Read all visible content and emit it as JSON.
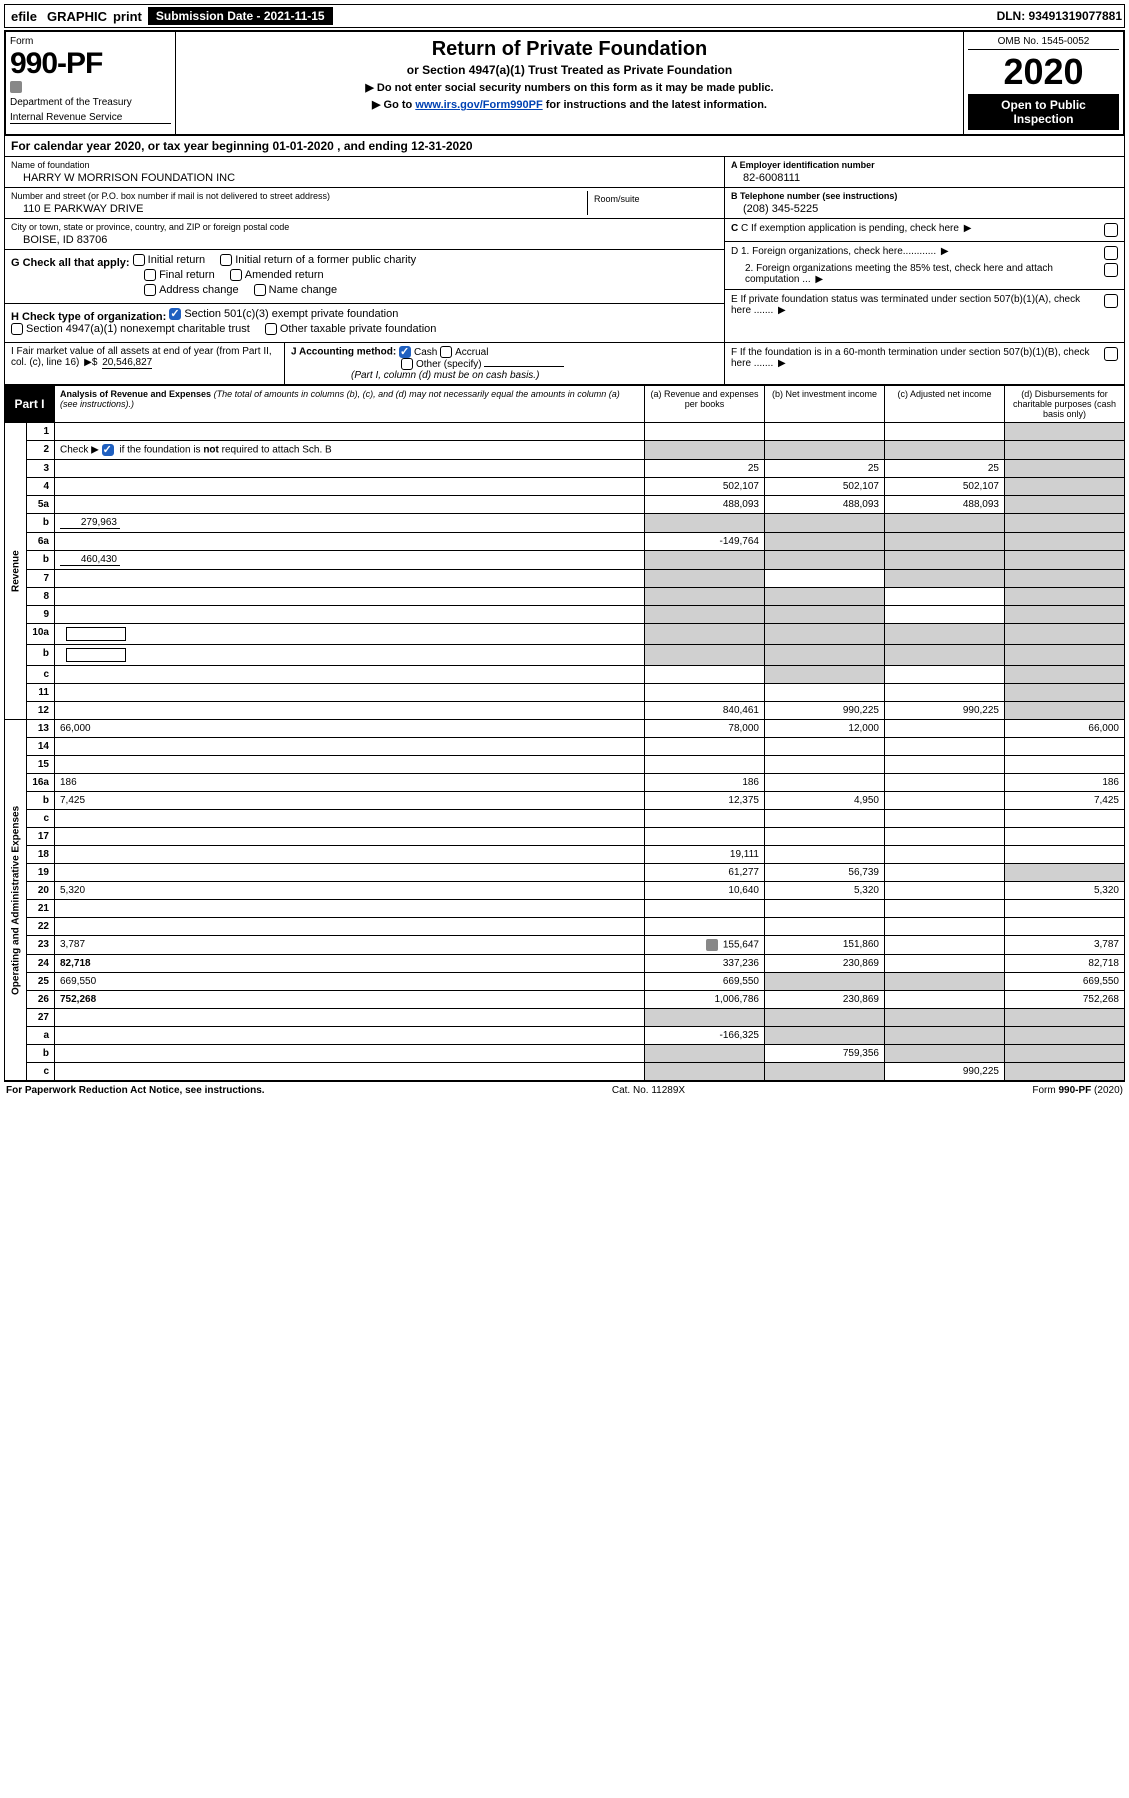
{
  "topbar": {
    "efile": "efile",
    "graphic": "GRAPHIC",
    "print": "print",
    "subdate": "Submission Date - 2021-11-15",
    "dln": "DLN: 93491319077881"
  },
  "header": {
    "form_label": "Form",
    "form_number": "990-PF",
    "dept": "Department of the Treasury",
    "irs": "Internal Revenue Service",
    "title": "Return of Private Foundation",
    "subtitle": "or Section 4947(a)(1) Trust Treated as Private Foundation",
    "instr1": "▶ Do not enter social security numbers on this form as it may be made public.",
    "instr2_pre": "▶ Go to ",
    "instr2_link": "www.irs.gov/Form990PF",
    "instr2_post": " for instructions and the latest information.",
    "omb": "OMB No. 1545-0052",
    "year": "2020",
    "open": "Open to Public Inspection"
  },
  "calendar": "For calendar year 2020, or tax year beginning 01-01-2020          , and ending 12-31-2020",
  "org": {
    "name_lbl": "Name of foundation",
    "name": "HARRY W MORRISON FOUNDATION INC",
    "addr_lbl": "Number and street (or P.O. box number if mail is not delivered to street address)",
    "addr": "110 E PARKWAY DRIVE",
    "room_lbl": "Room/suite",
    "city_lbl": "City or town, state or province, country, and ZIP or foreign postal code",
    "city": "BOISE, ID  83706",
    "a_lbl": "A Employer identification number",
    "a_val": "82-6008111",
    "b_lbl": "B Telephone number (see instructions)",
    "b_val": "(208) 345-5225",
    "c_lbl": "C If exemption application is pending, check here",
    "d1": "D 1. Foreign organizations, check here............",
    "d2": "2. Foreign organizations meeting the 85% test, check here and attach computation ...",
    "e": "E If private foundation status was terminated under section 507(b)(1)(A), check here .......",
    "f": "F If the foundation is in a 60-month termination under section 507(b)(1)(B), check here .......",
    "g_lbl": "G Check all that apply:",
    "g_opts": [
      "Initial return",
      "Initial return of a former public charity",
      "Final return",
      "Amended return",
      "Address change",
      "Name change"
    ],
    "h_lbl": "H Check type of organization:",
    "h_opt1": "Section 501(c)(3) exempt private foundation",
    "h_opt2": "Section 4947(a)(1) nonexempt charitable trust",
    "h_opt3": "Other taxable private foundation",
    "i_lbl": "I Fair market value of all assets at end of year (from Part II, col. (c), line 16)",
    "i_val": "20,546,827",
    "j_lbl": "J Accounting method:",
    "j_cash": "Cash",
    "j_accrual": "Accrual",
    "j_other": "Other (specify)",
    "j_note": "(Part I, column (d) must be on cash basis.)"
  },
  "part1": {
    "label": "Part I",
    "title": "Analysis of Revenue and Expenses",
    "note": "(The total of amounts in columns (b), (c), and (d) may not necessarily equal the amounts in column (a) (see instructions).)",
    "col_a": "(a) Revenue and expenses per books",
    "col_b": "(b) Net investment income",
    "col_c": "(c) Adjusted net income",
    "col_d": "(d) Disbursements for charitable purposes (cash basis only)",
    "side_rev": "Revenue",
    "side_exp": "Operating and Administrative Expenses"
  },
  "rows": [
    {
      "n": "1",
      "d": "",
      "a": "",
      "b": "",
      "c": "",
      "grey": [
        "d"
      ]
    },
    {
      "n": "2",
      "d": "",
      "dotted": true,
      "a": "",
      "b": "",
      "c": "",
      "grey": [
        "a",
        "b",
        "c",
        "d"
      ],
      "check": true
    },
    {
      "n": "3",
      "d": "",
      "a": "25",
      "b": "25",
      "c": "25",
      "grey": [
        "d"
      ]
    },
    {
      "n": "4",
      "d": "",
      "dotted": true,
      "a": "502,107",
      "b": "502,107",
      "c": "502,107",
      "grey": [
        "d"
      ]
    },
    {
      "n": "5a",
      "d": "",
      "dotted": true,
      "a": "488,093",
      "b": "488,093",
      "c": "488,093",
      "grey": [
        "d"
      ]
    },
    {
      "n": "b",
      "d": "",
      "inline": "279,963",
      "a": "",
      "b": "",
      "c": "",
      "grey": [
        "a",
        "b",
        "c",
        "d"
      ]
    },
    {
      "n": "6a",
      "d": "",
      "a": "-149,764",
      "b": "",
      "c": "",
      "grey": [
        "b",
        "c",
        "d"
      ]
    },
    {
      "n": "b",
      "d": "",
      "inline": "460,430",
      "a": "",
      "b": "",
      "c": "",
      "grey": [
        "a",
        "b",
        "c",
        "d"
      ]
    },
    {
      "n": "7",
      "d": "",
      "dotted": true,
      "a": "",
      "b": "",
      "c": "",
      "grey": [
        "a",
        "c",
        "d"
      ]
    },
    {
      "n": "8",
      "d": "",
      "dotted": true,
      "a": "",
      "b": "",
      "c": "",
      "grey": [
        "a",
        "b",
        "d"
      ]
    },
    {
      "n": "9",
      "d": "",
      "dotted": true,
      "a": "",
      "b": "",
      "c": "",
      "grey": [
        "a",
        "b",
        "d"
      ]
    },
    {
      "n": "10a",
      "d": "",
      "box": true,
      "a": "",
      "b": "",
      "c": "",
      "grey": [
        "a",
        "b",
        "c",
        "d"
      ]
    },
    {
      "n": "b",
      "d": "",
      "dotted": true,
      "box": true,
      "a": "",
      "b": "",
      "c": "",
      "grey": [
        "a",
        "b",
        "c",
        "d"
      ]
    },
    {
      "n": "c",
      "d": "",
      "dotted": true,
      "a": "",
      "b": "",
      "c": "",
      "grey": [
        "b",
        "d"
      ]
    },
    {
      "n": "11",
      "d": "",
      "dotted": true,
      "a": "",
      "b": "",
      "c": "",
      "grey": [
        "d"
      ]
    },
    {
      "n": "12",
      "d": "",
      "dotted": true,
      "bold": true,
      "a": "840,461",
      "b": "990,225",
      "c": "990,225",
      "grey": [
        "d"
      ]
    },
    {
      "n": "13",
      "d": "66,000",
      "a": "78,000",
      "b": "12,000",
      "c": ""
    },
    {
      "n": "14",
      "d": "",
      "dotted": true,
      "a": "",
      "b": "",
      "c": ""
    },
    {
      "n": "15",
      "d": "",
      "dotted": true,
      "a": "",
      "b": "",
      "c": ""
    },
    {
      "n": "16a",
      "d": "186",
      "dotted": true,
      "a": "186",
      "b": "",
      "c": ""
    },
    {
      "n": "b",
      "d": "7,425",
      "dotted": true,
      "a": "12,375",
      "b": "4,950",
      "c": ""
    },
    {
      "n": "c",
      "d": "",
      "dotted": true,
      "a": "",
      "b": "",
      "c": ""
    },
    {
      "n": "17",
      "d": "",
      "dotted": true,
      "a": "",
      "b": "",
      "c": ""
    },
    {
      "n": "18",
      "d": "",
      "dotted": true,
      "a": "19,111",
      "b": "",
      "c": ""
    },
    {
      "n": "19",
      "d": "",
      "dotted": true,
      "a": "61,277",
      "b": "56,739",
      "c": "",
      "grey": [
        "d"
      ]
    },
    {
      "n": "20",
      "d": "5,320",
      "dotted": true,
      "a": "10,640",
      "b": "5,320",
      "c": ""
    },
    {
      "n": "21",
      "d": "",
      "dotted": true,
      "a": "",
      "b": "",
      "c": ""
    },
    {
      "n": "22",
      "d": "",
      "dotted": true,
      "a": "",
      "b": "",
      "c": ""
    },
    {
      "n": "23",
      "d": "3,787",
      "dotted": true,
      "icon": true,
      "a": "155,647",
      "b": "151,860",
      "c": ""
    },
    {
      "n": "24",
      "d": "82,718",
      "dotted": true,
      "bold": true,
      "a": "337,236",
      "b": "230,869",
      "c": ""
    },
    {
      "n": "25",
      "d": "669,550",
      "dotted": true,
      "a": "669,550",
      "b": "",
      "c": "",
      "grey": [
        "b",
        "c"
      ]
    },
    {
      "n": "26",
      "d": "752,268",
      "bold": true,
      "a": "1,006,786",
      "b": "230,869",
      "c": ""
    },
    {
      "n": "27",
      "d": "",
      "a": "",
      "b": "",
      "c": "",
      "grey": [
        "a",
        "b",
        "c",
        "d"
      ]
    },
    {
      "n": "a",
      "d": "",
      "bold": true,
      "a": "-166,325",
      "b": "",
      "c": "",
      "grey": [
        "b",
        "c",
        "d"
      ]
    },
    {
      "n": "b",
      "d": "",
      "bold": true,
      "a": "",
      "b": "759,356",
      "c": "",
      "grey": [
        "a",
        "c",
        "d"
      ]
    },
    {
      "n": "c",
      "d": "",
      "dotted": true,
      "bold": true,
      "a": "",
      "b": "",
      "c": "990,225",
      "grey": [
        "a",
        "b",
        "d"
      ]
    }
  ],
  "footer": {
    "left": "For Paperwork Reduction Act Notice, see instructions.",
    "mid": "Cat. No. 11289X",
    "right": "Form 990-PF (2020)"
  }
}
